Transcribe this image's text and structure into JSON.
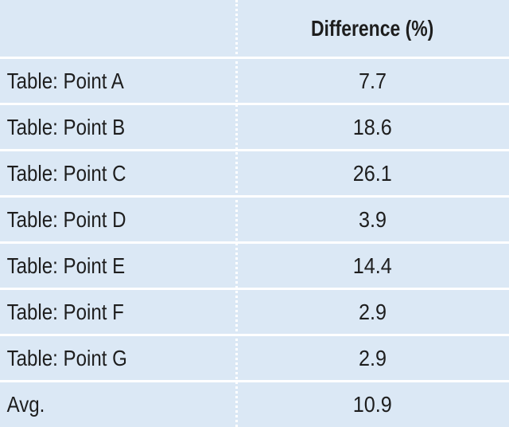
{
  "table": {
    "header": {
      "label": "",
      "value": "Difference (%)"
    },
    "rows": [
      {
        "label": "Table: Point A",
        "value": "7.7"
      },
      {
        "label": "Table: Point B",
        "value": "18.6"
      },
      {
        "label": "Table: Point C",
        "value": "26.1"
      },
      {
        "label": "Table: Point D",
        "value": "3.9"
      },
      {
        "label": "Table: Point E",
        "value": "14.4"
      },
      {
        "label": "Table: Point F",
        "value": "2.9"
      },
      {
        "label": "Table: Point G",
        "value": "2.9"
      },
      {
        "label": "Avg.",
        "value": "10.9"
      }
    ],
    "colors": {
      "background": "#dbe8f5",
      "grid": "#ffffff",
      "text": "#1e1e1e"
    }
  }
}
